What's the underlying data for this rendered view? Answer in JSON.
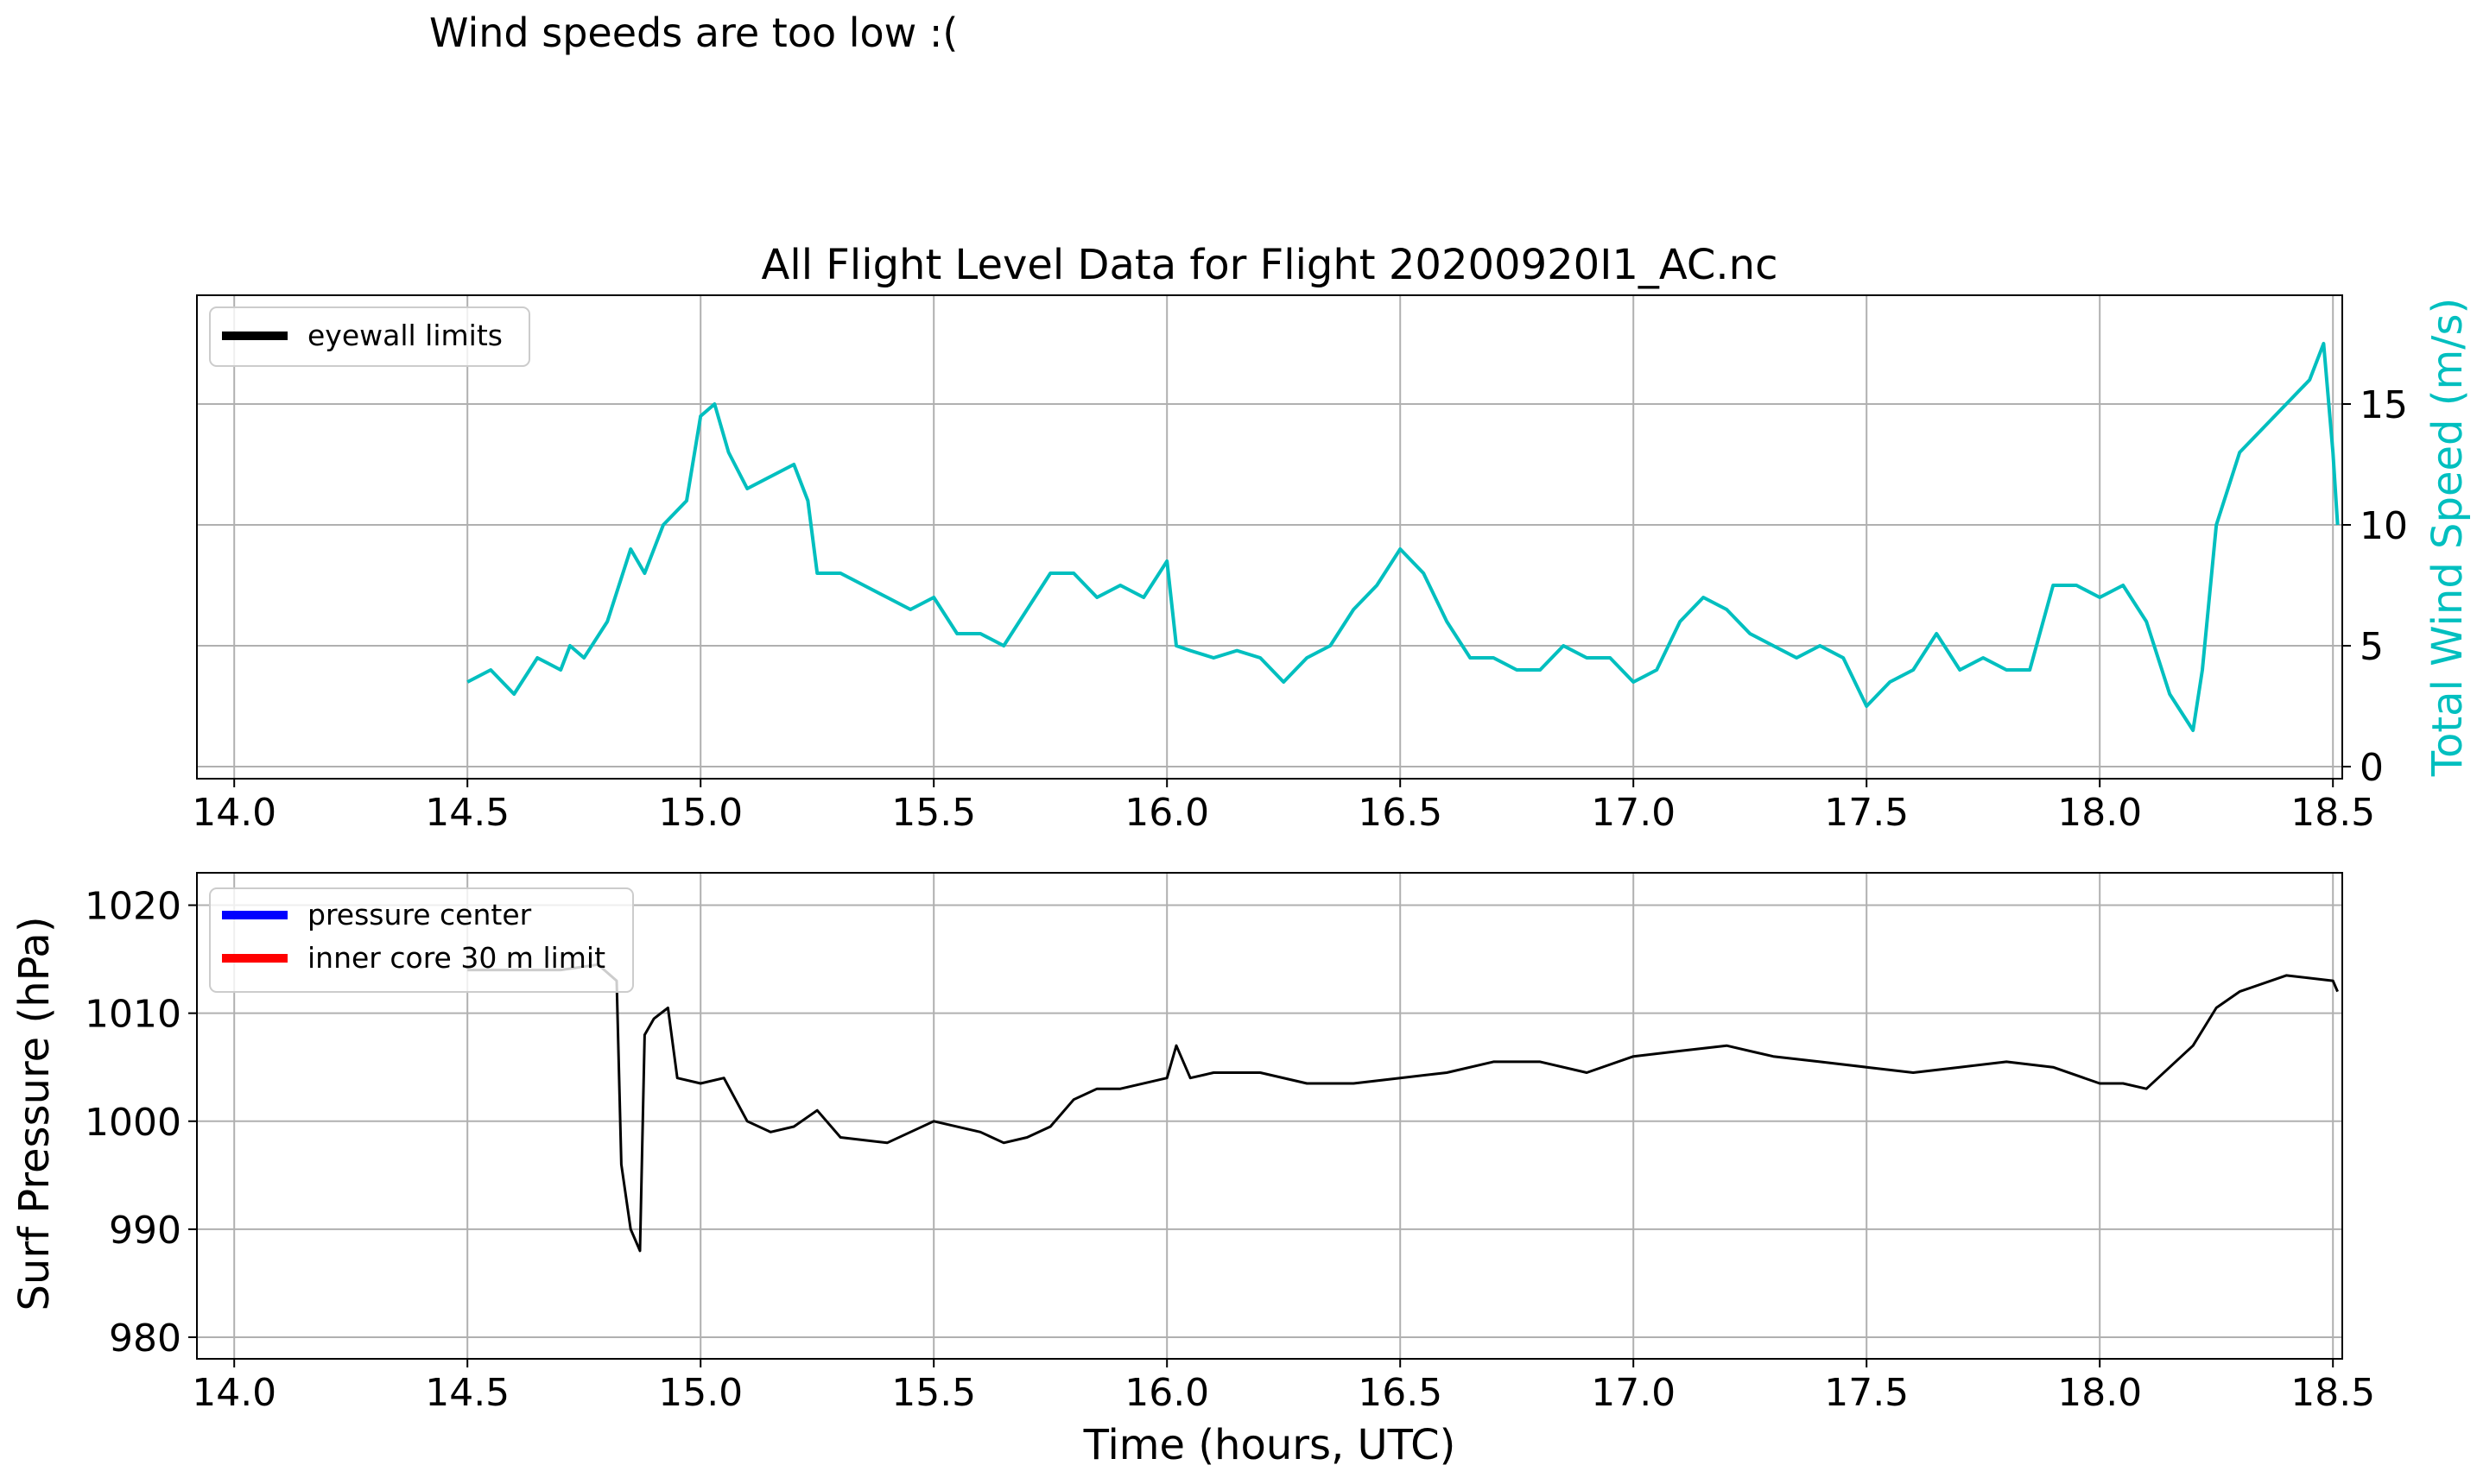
{
  "header_note": "Wind speeds are too low :(",
  "chart_data": [
    {
      "type": "line",
      "title": "All Flight Level Data for Flight 20200920I1_AC.nc",
      "xlabel": "",
      "ylabel": "Total Wind Speed (m/s)",
      "ylabel_color": "#00bfbf",
      "y_axis_side": "right",
      "xlim": [
        13.92,
        18.52
      ],
      "ylim": [
        -0.5,
        19.5
      ],
      "xticks": [
        "14.0",
        "14.5",
        "15.0",
        "15.5",
        "16.0",
        "16.5",
        "17.0",
        "17.5",
        "18.0",
        "18.5"
      ],
      "yticks": [
        "0",
        "5",
        "10",
        "15"
      ],
      "grid": true,
      "legend": {
        "placement": "upper-left",
        "entries": [
          {
            "label": "eyewall limits",
            "color": "#000000"
          }
        ]
      },
      "series": [
        {
          "color": "#00bfbf",
          "x": [
            14.5,
            14.55,
            14.6,
            14.65,
            14.7,
            14.72,
            14.75,
            14.8,
            14.85,
            14.88,
            14.92,
            14.97,
            15.0,
            15.03,
            15.06,
            15.1,
            15.15,
            15.2,
            15.23,
            15.25,
            15.3,
            15.35,
            15.4,
            15.45,
            15.5,
            15.55,
            15.6,
            15.65,
            15.7,
            15.75,
            15.8,
            15.85,
            15.9,
            15.95,
            16.0,
            16.02,
            16.05,
            16.1,
            16.15,
            16.2,
            16.25,
            16.3,
            16.35,
            16.4,
            16.45,
            16.5,
            16.55,
            16.6,
            16.65,
            16.7,
            16.75,
            16.8,
            16.85,
            16.9,
            16.95,
            17.0,
            17.05,
            17.1,
            17.15,
            17.2,
            17.25,
            17.3,
            17.35,
            17.4,
            17.45,
            17.5,
            17.55,
            17.6,
            17.65,
            17.7,
            17.75,
            17.8,
            17.85,
            17.9,
            17.95,
            18.0,
            18.05,
            18.1,
            18.15,
            18.2,
            18.22,
            18.25,
            18.3,
            18.35,
            18.4,
            18.45,
            18.48,
            18.5,
            18.51
          ],
          "y": [
            3.5,
            4.0,
            3.0,
            4.5,
            4.0,
            5.0,
            4.5,
            6.0,
            9.0,
            8.0,
            10.0,
            11.0,
            14.5,
            15.0,
            13.0,
            11.5,
            12.0,
            12.5,
            11.0,
            8.0,
            8.0,
            7.5,
            7.0,
            6.5,
            7.0,
            5.5,
            5.5,
            5.0,
            6.5,
            8.0,
            8.0,
            7.0,
            7.5,
            7.0,
            8.5,
            5.0,
            4.8,
            4.5,
            4.8,
            4.5,
            3.5,
            4.5,
            5.0,
            6.5,
            7.5,
            9.0,
            8.0,
            6.0,
            4.5,
            4.5,
            4.0,
            4.0,
            5.0,
            4.5,
            4.5,
            3.5,
            4.0,
            6.0,
            7.0,
            6.5,
            5.5,
            5.0,
            4.5,
            5.0,
            4.5,
            2.5,
            3.5,
            4.0,
            5.5,
            4.0,
            4.5,
            4.0,
            4.0,
            7.5,
            7.5,
            7.0,
            7.5,
            6.0,
            3.0,
            1.5,
            4.0,
            10.0,
            13.0,
            14.0,
            15.0,
            16.0,
            17.5,
            13.0,
            10.0
          ]
        }
      ]
    },
    {
      "type": "line",
      "title": "",
      "xlabel": "Time (hours, UTC)",
      "ylabel": "Surf Pressure (hPa)",
      "y_axis_side": "left",
      "xlim": [
        13.92,
        18.52
      ],
      "ylim": [
        978,
        1023
      ],
      "xticks": [
        "14.0",
        "14.5",
        "15.0",
        "15.5",
        "16.0",
        "16.5",
        "17.0",
        "17.5",
        "18.0",
        "18.5"
      ],
      "yticks": [
        "980",
        "990",
        "1000",
        "1010",
        "1020"
      ],
      "grid": true,
      "legend": {
        "placement": "upper-left",
        "entries": [
          {
            "label": "pressure center",
            "color": "#0000ff"
          },
          {
            "label": "inner core 30 m limit",
            "color": "#ff0000"
          }
        ]
      },
      "series": [
        {
          "color": "#000000",
          "x": [
            14.5,
            14.6,
            14.7,
            14.78,
            14.82,
            14.83,
            14.85,
            14.87,
            14.88,
            14.9,
            14.93,
            14.95,
            15.0,
            15.05,
            15.1,
            15.15,
            15.2,
            15.25,
            15.3,
            15.4,
            15.5,
            15.6,
            15.65,
            15.7,
            15.75,
            15.8,
            15.85,
            15.9,
            16.0,
            16.02,
            16.05,
            16.1,
            16.2,
            16.3,
            16.4,
            16.5,
            16.6,
            16.7,
            16.8,
            16.9,
            17.0,
            17.1,
            17.2,
            17.3,
            17.4,
            17.5,
            17.6,
            17.7,
            17.8,
            17.9,
            18.0,
            18.05,
            18.1,
            18.15,
            18.2,
            18.25,
            18.3,
            18.4,
            18.5,
            18.51
          ],
          "y": [
            1014,
            1014,
            1014,
            1014.5,
            1013,
            996,
            990,
            988,
            1008,
            1009.5,
            1010.5,
            1004,
            1003.5,
            1004,
            1000,
            999,
            999.5,
            1001,
            998.5,
            998,
            1000,
            999,
            998,
            998.5,
            999.5,
            1002,
            1003,
            1003,
            1004,
            1007,
            1004,
            1004.5,
            1004.5,
            1003.5,
            1003.5,
            1004,
            1004.5,
            1005.5,
            1005.5,
            1004.5,
            1006,
            1006.5,
            1007,
            1006,
            1005.5,
            1005,
            1004.5,
            1005,
            1005.5,
            1005,
            1003.5,
            1003.5,
            1003,
            1005,
            1007,
            1010.5,
            1012,
            1013.5,
            1013,
            1012
          ]
        }
      ]
    }
  ]
}
